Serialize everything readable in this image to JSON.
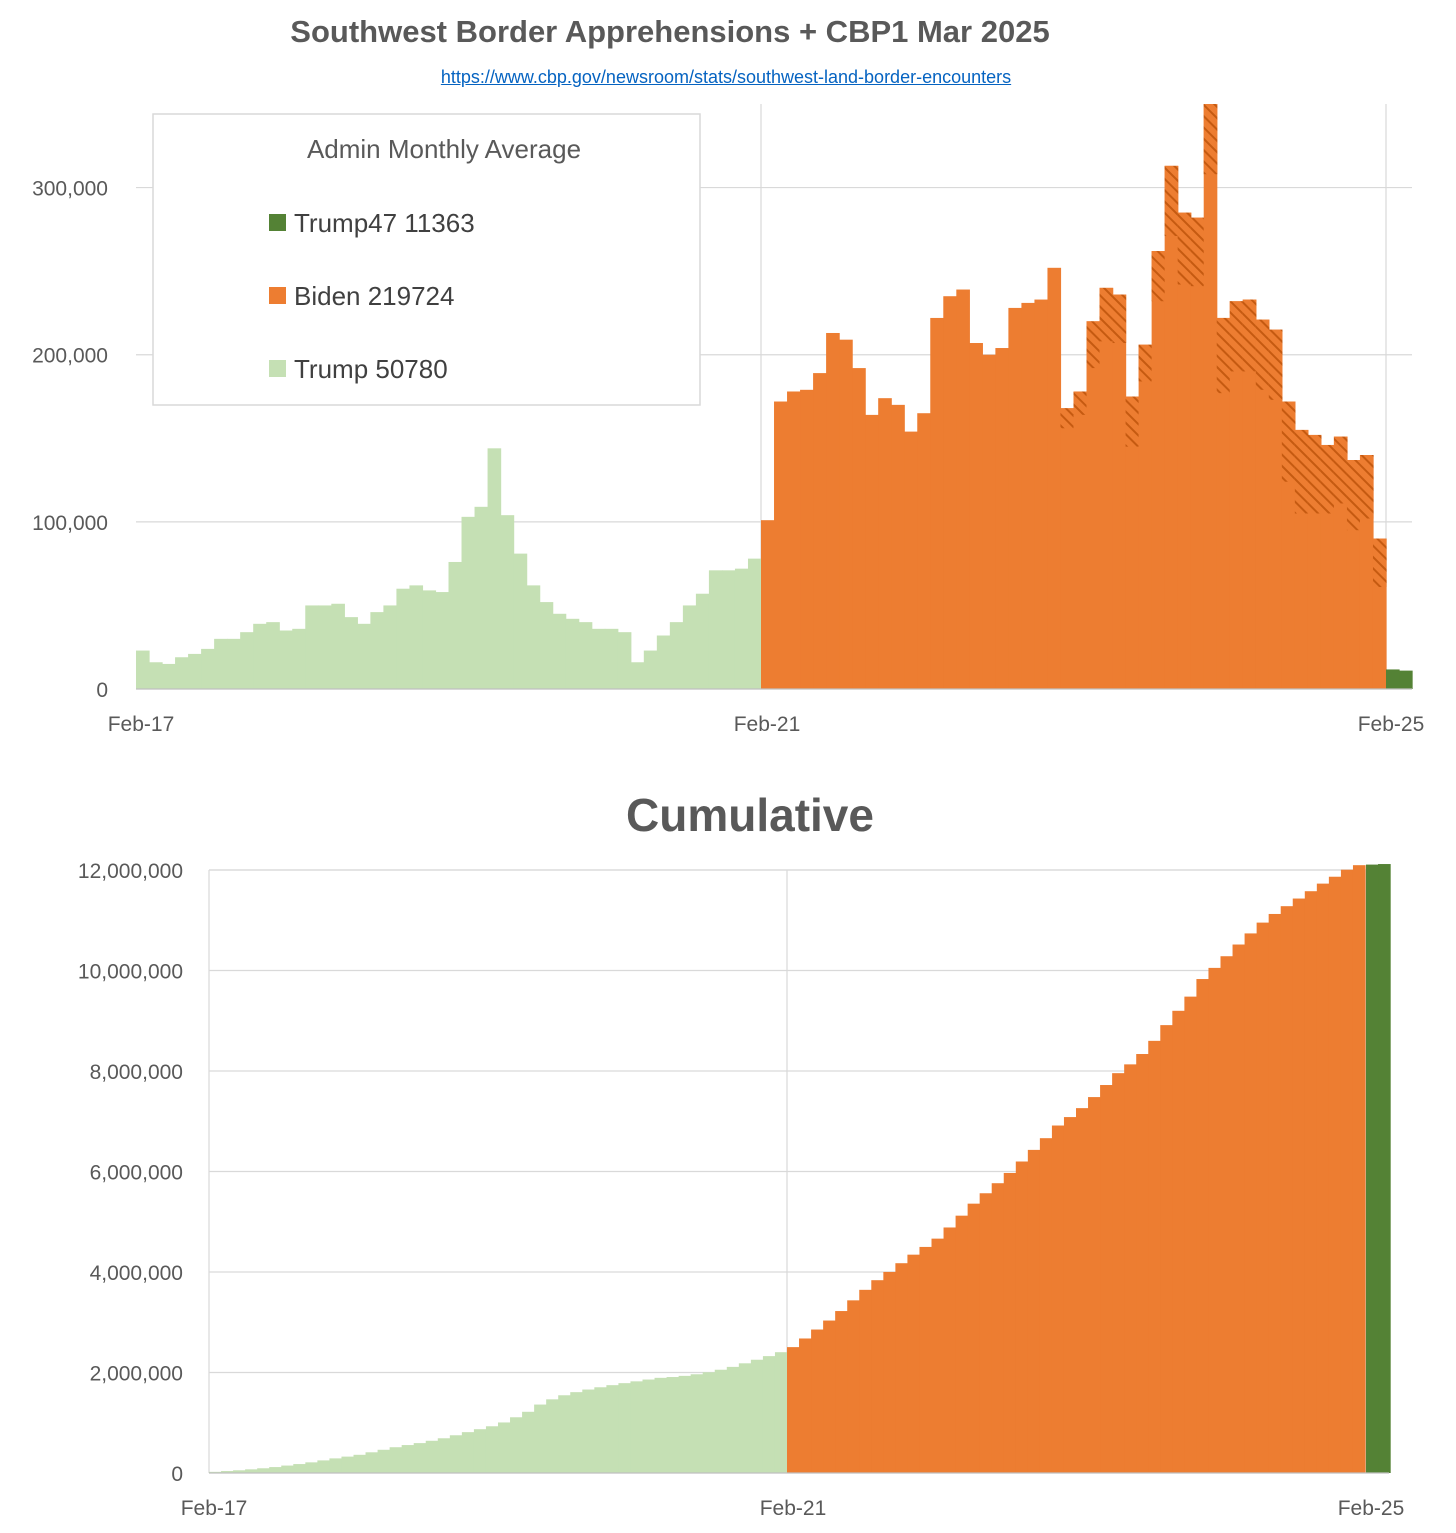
{
  "title": "Southwest Border Apprehensions + CBP1 Mar 2025",
  "source_url": "https://www.cbp.gov/newsroom/stats/southwest-land-border-encounters",
  "cumulative_title": "Cumulative",
  "colors": {
    "trump": "#c5e0b4",
    "biden": "#ed7d31",
    "biden_hatch": "#c55a11",
    "trump47": "#548235",
    "grid": "#d9d9d9",
    "text": "#595959"
  },
  "chart_data": [
    {
      "type": "bar",
      "title": "Southwest Border Apprehensions + CBP1 Mar 2025",
      "x_tick_labels": [
        "Feb-17",
        "Feb-21",
        "Feb-25"
      ],
      "y_tick_labels": [
        "0",
        "100,000",
        "200,000",
        "300,000"
      ],
      "ylim": [
        0,
        350000
      ],
      "grid": true,
      "legend": {
        "title": "Admin Monthly Average",
        "position": "top-left",
        "entries": [
          {
            "label": "Trump47 11363",
            "series": "Trump47"
          },
          {
            "label": "Biden 219724",
            "series": "Biden"
          },
          {
            "label": "Trump 50780",
            "series": "Trump"
          }
        ]
      },
      "series": [
        {
          "name": "Trump",
          "start_month": "Feb-17",
          "values": [
            23000,
            16000,
            15000,
            19000,
            21000,
            24000,
            30000,
            30000,
            34000,
            39000,
            40000,
            35000,
            36000,
            50000,
            50000,
            51000,
            43000,
            39000,
            46000,
            50000,
            60000,
            62000,
            59000,
            58000,
            76000,
            103000,
            109000,
            144000,
            104000,
            81000,
            62000,
            52000,
            45000,
            42000,
            40000,
            36000,
            36000,
            34000,
            16000,
            23000,
            32000,
            40000,
            50000,
            57000,
            71000,
            71000,
            72000,
            78000
          ]
        },
        {
          "name": "Biden",
          "start_month": "Feb-21",
          "totals": [
            101000,
            172000,
            178000,
            179000,
            189000,
            213000,
            209000,
            192000,
            164000,
            174000,
            170000,
            154000,
            165000,
            222000,
            235000,
            239000,
            207000,
            200000,
            204000,
            228000,
            231000,
            233000,
            252000,
            168000,
            178000,
            220000,
            240000,
            236000,
            175000,
            206000,
            262000,
            313000,
            285000,
            282000,
            350000,
            222000,
            232000,
            233000,
            221000,
            215000,
            172000,
            155000,
            152000,
            146000,
            151000,
            137000,
            140000,
            90000
          ],
          "hatched": [
            0,
            0,
            0,
            0,
            0,
            0,
            0,
            0,
            0,
            0,
            0,
            0,
            0,
            0,
            0,
            0,
            0,
            0,
            0,
            0,
            0,
            0,
            0,
            12000,
            14000,
            28000,
            32000,
            29000,
            30000,
            22000,
            30000,
            42000,
            43000,
            41000,
            42000,
            45000,
            42000,
            43000,
            42000,
            42000,
            48000,
            50000,
            47000,
            41000,
            40000,
            42000,
            38000,
            29000
          ]
        },
        {
          "name": "Trump47",
          "start_month": "Feb-25",
          "values": [
            11700,
            11000
          ]
        }
      ]
    },
    {
      "type": "bar",
      "title": "Cumulative",
      "x_tick_labels": [
        "Feb-17",
        "Feb-21",
        "Feb-25"
      ],
      "y_tick_labels": [
        "0",
        "2,000,000",
        "4,000,000",
        "6,000,000",
        "8,000,000",
        "10,000,000",
        "12,000,000"
      ],
      "ylim": [
        0,
        12000000
      ],
      "grid": true,
      "series": [
        {
          "name": "Trump",
          "note": "running total of monthly Trump values"
        },
        {
          "name": "Biden",
          "note": "running total continuing from Trump"
        },
        {
          "name": "Trump47",
          "note": "running total continuing from Biden"
        }
      ]
    }
  ]
}
